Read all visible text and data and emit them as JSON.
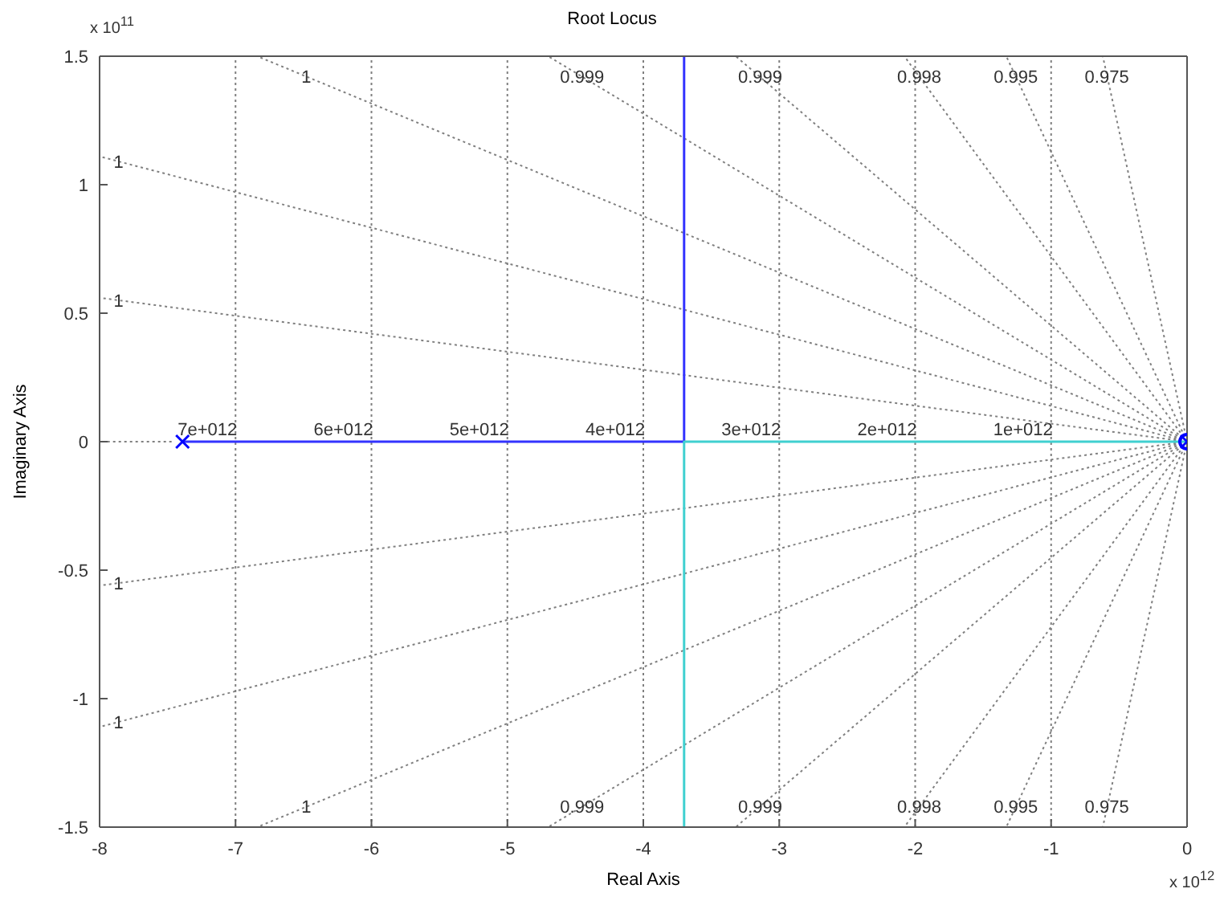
{
  "chart_data": {
    "type": "line",
    "title": "Root Locus",
    "xlabel": "Real Axis",
    "ylabel": "Imaginary Axis",
    "xlim": [
      -8,
      0
    ],
    "xticks": [
      -8,
      -7,
      -6,
      -5,
      -4,
      -3,
      -2,
      -1,
      0
    ],
    "ylim": [
      -1.5,
      1.5
    ],
    "yticks": [
      -1.5,
      -1,
      -0.5,
      0,
      0.5,
      1,
      1.5
    ],
    "series": [
      {
        "line_style": "dotted",
        "color": "#808080",
        "x": [
          -7.47,
          -8
        ],
        "values": [
          0,
          0
        ]
      },
      {
        "line_style": "dotted",
        "color": "#808080",
        "x": [
          0,
          -8
        ],
        "values": [
          0,
          1.11
        ]
      },
      {
        "line_style": "dotted",
        "color": "#808080",
        "x": [
          0,
          -8
        ],
        "values": [
          0,
          0.56
        ]
      },
      {
        "line_style": "dotted",
        "color": "#808080",
        "x": [
          0,
          -6.84
        ],
        "values": [
          0,
          1.5
        ]
      },
      {
        "line_style": "dotted",
        "color": "#808080",
        "x": [
          0,
          -4.7
        ],
        "values": [
          0,
          1.5
        ]
      },
      {
        "line_style": "dotted",
        "color": "#808080",
        "x": [
          0,
          -3.32
        ],
        "values": [
          0,
          1.5
        ]
      },
      {
        "line_style": "dotted",
        "color": "#808080",
        "x": [
          0,
          -2.08
        ],
        "values": [
          0,
          1.5
        ]
      },
      {
        "line_style": "dotted",
        "color": "#808080",
        "x": [
          0,
          -1.33
        ],
        "values": [
          0,
          1.5
        ]
      },
      {
        "line_style": "dotted",
        "color": "#808080",
        "x": [
          0,
          -0.62
        ],
        "values": [
          0,
          1.5
        ]
      },
      {
        "line_style": "dotted",
        "color": "#808080",
        "x": [
          0,
          -8
        ],
        "values": [
          0,
          -1.11
        ]
      },
      {
        "line_style": "dotted",
        "color": "#808080",
        "x": [
          0,
          -8
        ],
        "values": [
          0,
          -0.56
        ]
      },
      {
        "line_style": "dotted",
        "color": "#808080",
        "x": [
          0,
          -6.84
        ],
        "values": [
          0,
          -1.5
        ]
      },
      {
        "line_style": "dotted",
        "color": "#808080",
        "x": [
          0,
          -4.7
        ],
        "values": [
          0,
          -1.5
        ]
      },
      {
        "line_style": "dotted",
        "color": "#808080",
        "x": [
          0,
          -3.32
        ],
        "values": [
          0,
          -1.5
        ]
      },
      {
        "line_style": "dotted",
        "color": "#808080",
        "x": [
          0,
          -2.08
        ],
        "values": [
          0,
          -1.5
        ]
      },
      {
        "line_style": "dotted",
        "color": "#808080",
        "x": [
          0,
          -1.33
        ],
        "values": [
          0,
          -1.5
        ]
      },
      {
        "line_style": "dotted",
        "color": "#808080",
        "x": [
          0,
          -0.62
        ],
        "values": [
          0,
          -1.5
        ]
      },
      {
        "line_style": "solid",
        "color": "#3333ff",
        "x": [
          -7.39,
          -3.7,
          -3.7
        ],
        "values": [
          0,
          0,
          1.5
        ]
      },
      {
        "line_style": "solid",
        "color": "#40d0d0",
        "x": [
          0,
          -3.7,
          -3.7
        ],
        "values": [
          0,
          0,
          -1.5
        ]
      },
      {
        "type": "scatter",
        "marker": "cross",
        "color": "#0000ff",
        "x": [
          -7.39,
          0
        ],
        "values": [
          0,
          0
        ]
      },
      {
        "type": "scatter",
        "marker": "circle",
        "color": "#0000ff",
        "x": [
          0
        ],
        "values": [
          0
        ]
      }
    ],
    "ref_lines": [
      {
        "axis": "x",
        "value": -7,
        "label": "7e+012",
        "color": "#808080",
        "line_style": "dotted"
      },
      {
        "axis": "x",
        "value": -6,
        "label": "6e+012",
        "color": "#808080",
        "line_style": "dotted"
      },
      {
        "axis": "x",
        "value": -5,
        "label": "5e+012",
        "color": "#808080",
        "line_style": "dotted"
      },
      {
        "axis": "x",
        "value": -4,
        "label": "4e+012",
        "color": "#808080",
        "line_style": "dotted"
      },
      {
        "axis": "x",
        "value": -3,
        "label": "3e+012",
        "color": "#808080",
        "line_style": "dotted"
      },
      {
        "axis": "x",
        "value": -2,
        "label": "2e+012",
        "color": "#808080",
        "line_style": "dotted"
      },
      {
        "axis": "x",
        "value": -1,
        "label": "1e+012",
        "color": "#808080",
        "line_style": "dotted"
      }
    ],
    "annotations": [
      "x 10$^{11}$",
      "x 10$^{12}$",
      {
        "text": "1",
        "x": -6.48,
        "y": 1.42
      },
      {
        "text": "0.999",
        "x": -4.45,
        "y": 1.42
      },
      {
        "text": "0.999",
        "x": -3.14,
        "y": 1.42
      },
      {
        "text": "0.998",
        "x": -1.97,
        "y": 1.42
      },
      {
        "text": "0.995",
        "x": -1.26,
        "y": 1.42
      },
      {
        "text": "0.975",
        "x": -0.59,
        "y": 1.42
      },
      {
        "text": "1",
        "x": -7.86,
        "y": 1.09
      },
      {
        "text": "1",
        "x": -7.86,
        "y": 0.55
      },
      {
        "text": "1",
        "x": -6.48,
        "y": -1.42
      },
      {
        "text": "0.999",
        "x": -4.45,
        "y": -1.42
      },
      {
        "text": "0.999",
        "x": -3.14,
        "y": -1.42
      },
      {
        "text": "0.998",
        "x": -1.97,
        "y": -1.42
      },
      {
        "text": "0.995",
        "x": -1.26,
        "y": -1.42
      },
      {
        "text": "0.975",
        "x": -0.59,
        "y": -1.42
      },
      {
        "text": "1",
        "x": -7.86,
        "y": -1.09
      },
      {
        "text": "1",
        "x": -7.86,
        "y": -0.55
      }
    ]
  }
}
